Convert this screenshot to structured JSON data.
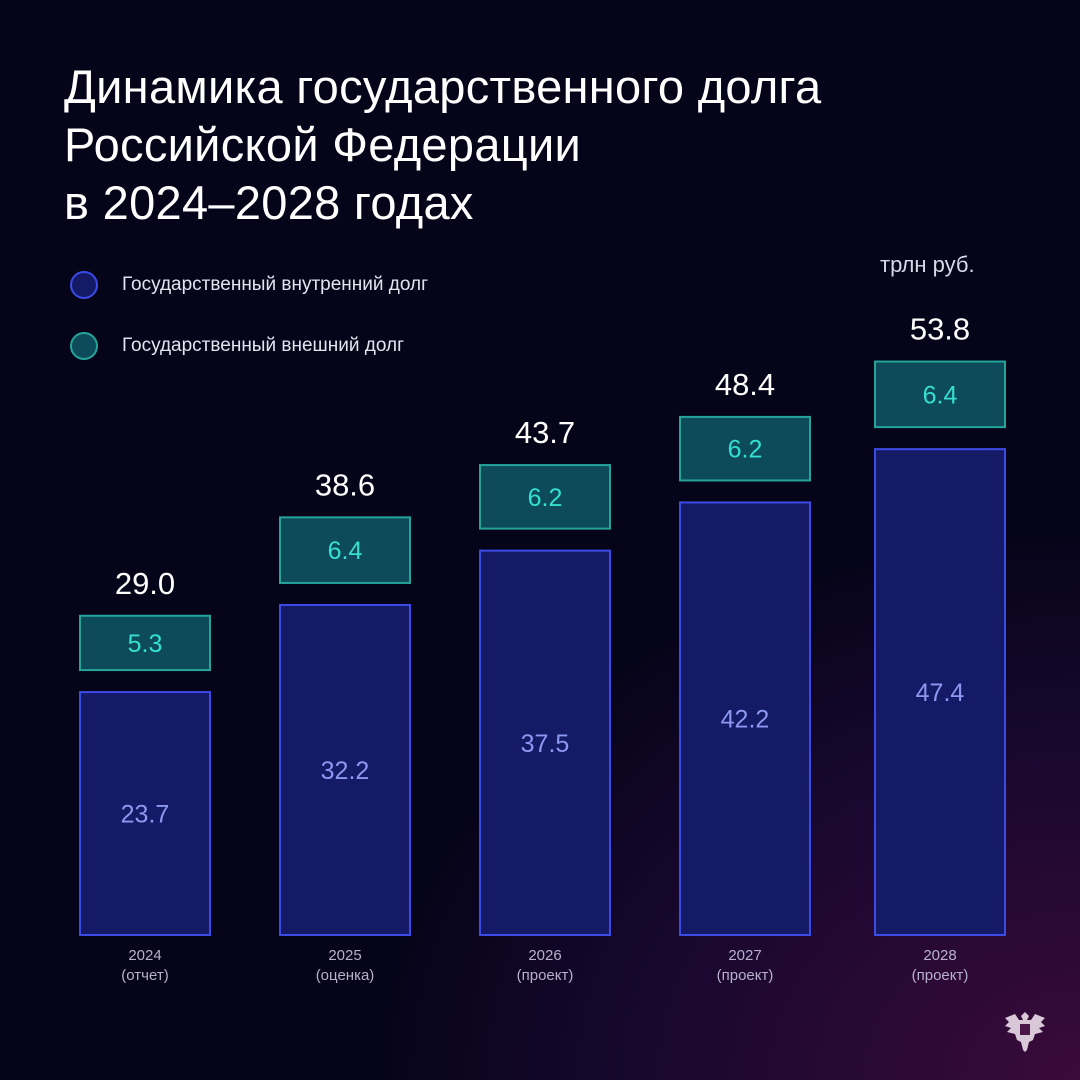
{
  "title_lines": [
    "Динамика государственного долга",
    "Российской Федерации",
    "в 2024–2028 годах"
  ],
  "unit": "трлн руб.",
  "colors": {
    "domestic_fill": "#141a66",
    "domestic_stroke": "#3c4ae8",
    "domestic_text": "#8d97f0",
    "external_fill": "#0d4a5a",
    "external_stroke": "#25a59a",
    "external_text": "#35e0d0"
  },
  "chart_data": {
    "type": "bar",
    "stacked": true,
    "title": "Динамика государственного долга Российской Федерации в 2024–2028 годах",
    "ylabel": "трлн руб.",
    "categories": [
      [
        "2024",
        "(отчет)"
      ],
      [
        "2025",
        "(оценка)"
      ],
      [
        "2026",
        "(проект)"
      ],
      [
        "2027",
        "(проект)"
      ],
      [
        "2028",
        "(проект)"
      ]
    ],
    "series": [
      {
        "name": "Государственный внутренний долг",
        "values": [
          23.7,
          32.2,
          37.5,
          42.2,
          47.4
        ]
      },
      {
        "name": "Государственный внешний долг",
        "values": [
          5.3,
          6.4,
          6.2,
          6.2,
          6.4
        ]
      }
    ],
    "totals": [
      "29.0",
      "38.6",
      "43.7",
      "48.4",
      "53.8"
    ],
    "value_labels": [
      [
        "23.7",
        "32.2",
        "37.5",
        "42.2",
        "47.4"
      ],
      [
        "5.3",
        "6.4",
        "6.2",
        "6.2",
        "6.4"
      ]
    ],
    "legend_position": "top-left",
    "grid": false
  }
}
